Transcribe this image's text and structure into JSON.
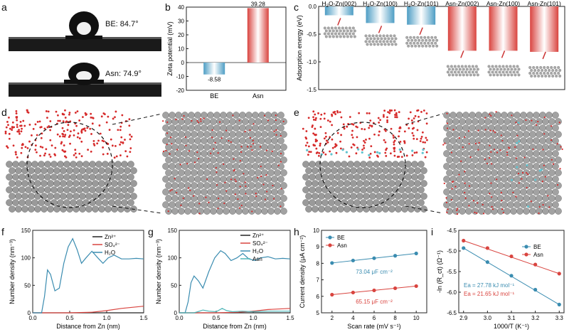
{
  "panel_labels": [
    "a",
    "b",
    "c",
    "d",
    "e",
    "f",
    "g",
    "h",
    "i"
  ],
  "panel_a": {
    "top_label": "BE: 84.7°",
    "bottom_label": "Asn: 74.9°"
  },
  "chart_data": [
    {
      "panel": "b",
      "type": "bar",
      "categories": [
        "BE",
        "Asn"
      ],
      "values": [
        -8.58,
        39.28
      ],
      "value_labels": [
        "-8.58",
        "39.28"
      ],
      "ylabel": "Zeta potential (mV)",
      "ylim": [
        -20,
        40
      ],
      "yticks": [
        "-20",
        "-10",
        "0",
        "10",
        "20",
        "30",
        "40"
      ],
      "colors": [
        "#4d9dc4",
        "#d9443f"
      ]
    },
    {
      "panel": "c",
      "type": "bar",
      "categories": [
        "H2O-Zn(002)",
        "H2O-Zn(100)",
        "H2O-Zn(101)",
        "Asn-Zn(002)",
        "Asn-Zn(100)",
        "Asn-Zn(101)"
      ],
      "category_labels": [
        {
          "a": "H",
          "sub": "2",
          "b": "O-Zn(002)"
        },
        {
          "a": "H",
          "sub": "2",
          "b": "O-Zn(100)"
        },
        {
          "a": "H",
          "sub": "2",
          "b": "O-Zn(101)"
        },
        {
          "a": "Asn-Zn(002)",
          "sub": "",
          "b": ""
        },
        {
          "a": "Asn-Zn(100)",
          "sub": "",
          "b": ""
        },
        {
          "a": "Asn-Zn(101)",
          "sub": "",
          "b": ""
        }
      ],
      "values": [
        -0.16,
        -0.3,
        -0.33,
        -0.8,
        -0.8,
        -0.82
      ],
      "ylabel": "Adsorption energy (eV)",
      "ylim": [
        -1.5,
        0
      ],
      "yticks": [
        "0.0",
        "-0.5",
        "-1.0",
        "-1.5"
      ],
      "colors": [
        "#4d9dc4",
        "#4d9dc4",
        "#4d9dc4",
        "#d9443f",
        "#d9443f",
        "#d9443f"
      ]
    },
    {
      "panel": "f",
      "type": "line",
      "xlabel": "Distance from Zn (nm)",
      "ylabel": "Number density (nm⁻³)",
      "xlim": [
        0,
        1.5
      ],
      "ylim": [
        0,
        150
      ],
      "xticks": [
        "0.0",
        "0.5",
        "1.0",
        "1.5"
      ],
      "yticks": [
        "0",
        "50",
        "100",
        "150"
      ],
      "legend": "top-right",
      "series": [
        {
          "name": "Zn²⁺",
          "color": "#222222",
          "x": [
            0,
            1.5
          ],
          "y": [
            0,
            0
          ]
        },
        {
          "name": "SO₄²⁻",
          "color": "#d9443f",
          "x": [
            0,
            0.5,
            0.8,
            1.0,
            1.2,
            1.5
          ],
          "y": [
            0,
            0,
            1,
            4,
            8,
            12
          ]
        },
        {
          "name": "H₂O",
          "color": "#3a8cb0",
          "x": [
            0,
            0.12,
            0.16,
            0.2,
            0.24,
            0.3,
            0.36,
            0.42,
            0.48,
            0.54,
            0.6,
            0.66,
            0.72,
            0.8,
            0.88,
            0.95,
            1.02,
            1.1,
            1.2,
            1.3,
            1.4,
            1.5
          ],
          "y": [
            0,
            0,
            30,
            78,
            70,
            40,
            45,
            90,
            120,
            135,
            115,
            90,
            100,
            112,
            100,
            90,
            100,
            105,
            98,
            98,
            99,
            98
          ]
        }
      ]
    },
    {
      "panel": "g",
      "type": "line",
      "xlabel": "Distance from Zn (nm)",
      "ylabel": "Number density (nm⁻³)",
      "xlim": [
        0,
        1.5
      ],
      "ylim": [
        0,
        150
      ],
      "xticks": [
        "0.0",
        "0.5",
        "1.0",
        "1.5"
      ],
      "yticks": [
        "0",
        "50",
        "100",
        "150"
      ],
      "legend": "top-right",
      "series": [
        {
          "name": "Zn²⁺",
          "color": "#222222",
          "x": [
            0,
            1.5
          ],
          "y": [
            0,
            0
          ]
        },
        {
          "name": "SO₄²⁻",
          "color": "#d9443f",
          "x": [
            0,
            0.5,
            0.8,
            1.0,
            1.2,
            1.5
          ],
          "y": [
            0,
            0,
            1,
            3,
            6,
            8
          ]
        },
        {
          "name": "H₂O",
          "color": "#3a8cb0",
          "x": [
            0,
            0.08,
            0.12,
            0.16,
            0.2,
            0.26,
            0.32,
            0.4,
            0.48,
            0.56,
            0.62,
            0.7,
            0.78,
            0.86,
            0.94,
            1.02,
            1.1,
            1.2,
            1.3,
            1.4,
            1.5
          ],
          "y": [
            0,
            0,
            20,
            55,
            67,
            58,
            45,
            75,
            100,
            113,
            108,
            95,
            100,
            108,
            98,
            95,
            100,
            102,
            98,
            99,
            98
          ]
        },
        {
          "name": "Asn",
          "color": "#4fb6b8",
          "x": [
            0,
            0.2,
            0.25,
            0.32,
            0.4,
            0.5,
            0.58,
            0.64,
            0.72,
            0.85,
            1.0,
            1.2,
            1.5
          ],
          "y": [
            0,
            0,
            2,
            5,
            3,
            2,
            8,
            4,
            2,
            3,
            2,
            3,
            3
          ]
        }
      ]
    },
    {
      "panel": "h",
      "type": "scatter",
      "xlabel": "Scan rate (mV s⁻¹)",
      "ylabel": "Current density (μA cm⁻²)",
      "xlim": [
        1,
        11
      ],
      "ylim": [
        5,
        10
      ],
      "xticks": [
        "2",
        "4",
        "6",
        "8",
        "10"
      ],
      "yticks": [
        "5",
        "6",
        "7",
        "8",
        "9",
        "10"
      ],
      "legend": "top-left",
      "annotations": [
        "73.04 μF cm⁻²",
        "65.15 μF cm⁻²"
      ],
      "series": [
        {
          "name": "BE",
          "color": "#3a8cb0",
          "x": [
            2,
            4,
            6,
            8,
            10
          ],
          "y": [
            8.02,
            8.17,
            8.31,
            8.46,
            8.6
          ]
        },
        {
          "name": "Asn",
          "color": "#d9443f",
          "x": [
            2,
            4,
            6,
            8,
            10
          ],
          "y": [
            6.1,
            6.23,
            6.36,
            6.49,
            6.62
          ]
        }
      ]
    },
    {
      "panel": "i",
      "type": "scatter",
      "xlabel": "1000/T (K⁻¹)",
      "ylabel": "-ln (R_ct) (Ω⁻¹)",
      "xlim": [
        2.88,
        3.32
      ],
      "ylim": [
        -6.5,
        -4.5
      ],
      "xticks": [
        "2.9",
        "3.0",
        "3.1",
        "3.2",
        "3.3"
      ],
      "yticks": [
        "-4.5",
        "-5.0",
        "-5.5",
        "-6.0",
        "-6.5"
      ],
      "legend": "top-right",
      "annotations": [
        "Ea = 27.78 kJ mol⁻¹",
        "Ea = 21.65 kJ mol⁻¹"
      ],
      "series": [
        {
          "name": "BE",
          "color": "#3a8cb0",
          "x": [
            2.9,
            3.0,
            3.1,
            3.2,
            3.3
          ],
          "y": [
            -4.93,
            -5.27,
            -5.6,
            -5.94,
            -6.3
          ]
        },
        {
          "name": "Asn",
          "color": "#d9443f",
          "x": [
            2.9,
            3.0,
            3.1,
            3.2,
            3.3
          ],
          "y": [
            -4.75,
            -4.93,
            -5.13,
            -5.33,
            -5.55
          ]
        }
      ]
    }
  ],
  "colors": {
    "be": "#3a8cb0",
    "asn": "#d9443f",
    "asn_line": "#4fb6b8",
    "zn_atom": "#9a9a9a",
    "water_o": "#d62a2a"
  }
}
